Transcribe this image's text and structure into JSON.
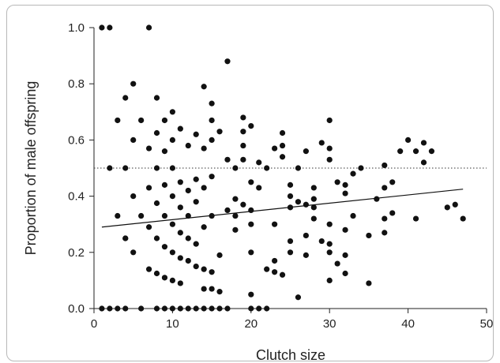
{
  "chart_data": {
    "type": "scatter",
    "xlabel": "Clutch size",
    "ylabel": "Proportion of male offspring",
    "xlim": [
      0,
      50
    ],
    "ylim": [
      0,
      1.0
    ],
    "xticks": [
      "0",
      "10",
      "20",
      "30",
      "40",
      "50"
    ],
    "yticks": [
      "0.0",
      "0.2",
      "0.4",
      "0.6",
      "0.8",
      "1.0"
    ],
    "grid": false,
    "reference_line": {
      "y": 0.5,
      "style": "dotted"
    },
    "trend_line": {
      "x": [
        1,
        47
      ],
      "y": [
        0.29,
        0.425
      ]
    },
    "points": [
      [
        1,
        1.0
      ],
      [
        2,
        1.0
      ],
      [
        7,
        1.0
      ],
      [
        1,
        0
      ],
      [
        2,
        0
      ],
      [
        3,
        0
      ],
      [
        4,
        0
      ],
      [
        6,
        0
      ],
      [
        8,
        0
      ],
      [
        9,
        0
      ],
      [
        10,
        0
      ],
      [
        11,
        0
      ],
      [
        12,
        0
      ],
      [
        13,
        0
      ],
      [
        14,
        0
      ],
      [
        15,
        0
      ],
      [
        16,
        0
      ],
      [
        17,
        0
      ],
      [
        20,
        0
      ],
      [
        21,
        0
      ],
      [
        22,
        0
      ],
      [
        2,
        0.5
      ],
      [
        3,
        0.67
      ],
      [
        3,
        0.33
      ],
      [
        4,
        0.75
      ],
      [
        4,
        0.5
      ],
      [
        4,
        0.25
      ],
      [
        4,
        0.25
      ],
      [
        5,
        0.8
      ],
      [
        5,
        0.6
      ],
      [
        5,
        0.4
      ],
      [
        5,
        0.2
      ],
      [
        6,
        0.67
      ],
      [
        6,
        0.33
      ],
      [
        7,
        0.57
      ],
      [
        7,
        0.43
      ],
      [
        7,
        0.29
      ],
      [
        7,
        0.14
      ],
      [
        8,
        0.75
      ],
      [
        8,
        0.625
      ],
      [
        8,
        0.5
      ],
      [
        8,
        0.375
      ],
      [
        8,
        0.25
      ],
      [
        8,
        0.125
      ],
      [
        9,
        0.67
      ],
      [
        9,
        0.56
      ],
      [
        9,
        0.44
      ],
      [
        9,
        0.33
      ],
      [
        9,
        0.22
      ],
      [
        9,
        0.11
      ],
      [
        10,
        0.7
      ],
      [
        10,
        0.6
      ],
      [
        10,
        0.5
      ],
      [
        10,
        0.4
      ],
      [
        10,
        0.3
      ],
      [
        10,
        0.2
      ],
      [
        10,
        0.1
      ],
      [
        11,
        0.64
      ],
      [
        11,
        0.45
      ],
      [
        11,
        0.36
      ],
      [
        11,
        0.27
      ],
      [
        11,
        0.18
      ],
      [
        11,
        0.09
      ],
      [
        12,
        0.58
      ],
      [
        12,
        0.42
      ],
      [
        12,
        0.33
      ],
      [
        12,
        0.25
      ],
      [
        12,
        0.17
      ],
      [
        13,
        0.62
      ],
      [
        13,
        0.46
      ],
      [
        13,
        0.38
      ],
      [
        13,
        0.23
      ],
      [
        13,
        0.15
      ],
      [
        14,
        0.79
      ],
      [
        14,
        0.57
      ],
      [
        14,
        0.43
      ],
      [
        14,
        0.29
      ],
      [
        14,
        0.14
      ],
      [
        14,
        0.07
      ],
      [
        15,
        0.73
      ],
      [
        15,
        0.67
      ],
      [
        15,
        0.6
      ],
      [
        15,
        0.47
      ],
      [
        15,
        0.33
      ],
      [
        15,
        0.13
      ],
      [
        15,
        0.07
      ],
      [
        16,
        0.63
      ],
      [
        16,
        0.19
      ],
      [
        16,
        0.06
      ],
      [
        17,
        0.88
      ],
      [
        17,
        0.53
      ],
      [
        17,
        0.35
      ],
      [
        18,
        0.5
      ],
      [
        18,
        0.39
      ],
      [
        18,
        0.33
      ],
      [
        18,
        0.28
      ],
      [
        19,
        0.68
      ],
      [
        19,
        0.63
      ],
      [
        19,
        0.58
      ],
      [
        19,
        0.53
      ],
      [
        19,
        0.37
      ],
      [
        20,
        0.65
      ],
      [
        20,
        0.45
      ],
      [
        20,
        0.35
      ],
      [
        20,
        0.3
      ],
      [
        20,
        0.2
      ],
      [
        20,
        0.05
      ],
      [
        21,
        0.52
      ],
      [
        21,
        0.43
      ],
      [
        22,
        0.5
      ],
      [
        22,
        0.14
      ],
      [
        23,
        0.57
      ],
      [
        23,
        0.3
      ],
      [
        23,
        0.17
      ],
      [
        23,
        0.13
      ],
      [
        24,
        0.625
      ],
      [
        24,
        0.58
      ],
      [
        24,
        0.54
      ],
      [
        24,
        0.12
      ],
      [
        25,
        0.44
      ],
      [
        25,
        0.4
      ],
      [
        25,
        0.36
      ],
      [
        25,
        0.24
      ],
      [
        25,
        0.2
      ],
      [
        26,
        0.5
      ],
      [
        26,
        0.38
      ],
      [
        26,
        0.04
      ],
      [
        27,
        0.56
      ],
      [
        27,
        0.37
      ],
      [
        27,
        0.26
      ],
      [
        27,
        0.19
      ],
      [
        28,
        0.43
      ],
      [
        28,
        0.39
      ],
      [
        28,
        0.36
      ],
      [
        28,
        0.32
      ],
      [
        29,
        0.59
      ],
      [
        29,
        0.24
      ],
      [
        30,
        0.67
      ],
      [
        30,
        0.57
      ],
      [
        30,
        0.53
      ],
      [
        30,
        0.3
      ],
      [
        30,
        0.23
      ],
      [
        30,
        0.2
      ],
      [
        30,
        0.1
      ],
      [
        31,
        0.45
      ],
      [
        31,
        0.16
      ],
      [
        32,
        0.44
      ],
      [
        32,
        0.41
      ],
      [
        32,
        0.28
      ],
      [
        32,
        0.19
      ],
      [
        32,
        0.125
      ],
      [
        33,
        0.48
      ],
      [
        33,
        0.33
      ],
      [
        34,
        0.5
      ],
      [
        35,
        0.26
      ],
      [
        35,
        0.09
      ],
      [
        36,
        0.39
      ],
      [
        37,
        0.51
      ],
      [
        37,
        0.43
      ],
      [
        37,
        0.32
      ],
      [
        37,
        0.27
      ],
      [
        38,
        0.45
      ],
      [
        38,
        0.34
      ],
      [
        39,
        0.56
      ],
      [
        40,
        0.6
      ],
      [
        41,
        0.56
      ],
      [
        41,
        0.32
      ],
      [
        42,
        0.59
      ],
      [
        42,
        0.52
      ],
      [
        43,
        0.56
      ],
      [
        45,
        0.36
      ],
      [
        46,
        0.37
      ],
      [
        47,
        0.32
      ]
    ]
  }
}
